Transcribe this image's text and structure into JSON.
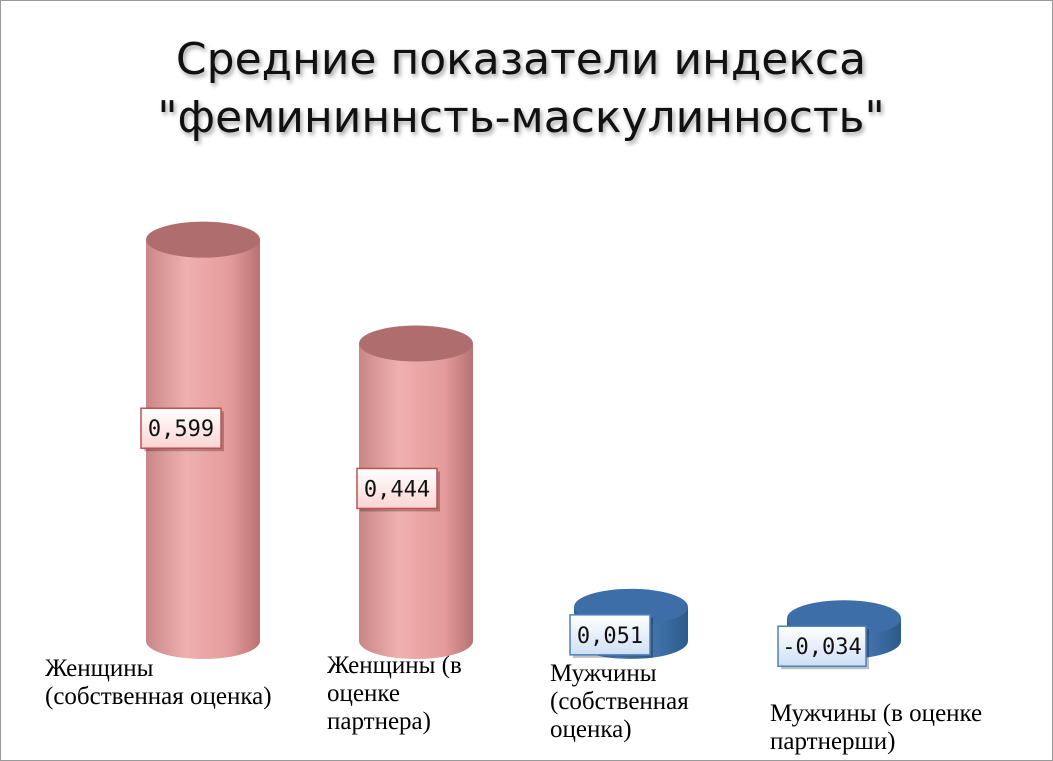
{
  "title_lines": [
    "Средние показатели индекса",
    "\"фемининнсть-маскулинность\""
  ],
  "colors": {
    "women": "#e8a0a0",
    "men": "#4a7ebb",
    "women_label_border": "#c0504d",
    "men_label_border": "#4f81bd"
  },
  "chart_data": {
    "type": "bar",
    "shape": "cylinder-3d",
    "title": "Средние показатели индекса \"фемининнсть-маскулинность\"",
    "categories": [
      "Женщины (собственная оценка)",
      "Женщины (в оценке партнера)",
      "Мужчины (собственная оценка)",
      "Мужчины (в оценке партнерши)"
    ],
    "values": [
      0.599,
      0.444,
      0.051,
      -0.034
    ],
    "data_labels": [
      "0,599",
      "0,444",
      "0,051",
      "-0,034"
    ],
    "series_groups": [
      "women",
      "women",
      "men",
      "men"
    ],
    "axes_visible": false,
    "grid": false,
    "legend": "none"
  },
  "category_label_lines": [
    [
      "Женщины",
      "(собственная оценка)"
    ],
    [
      "Женщины (в",
      "оценке",
      "партнера)"
    ],
    [
      "Мужчины",
      "(собственная",
      "оценка)"
    ],
    [
      "Мужчины (в оценке",
      "партнерши)"
    ]
  ]
}
